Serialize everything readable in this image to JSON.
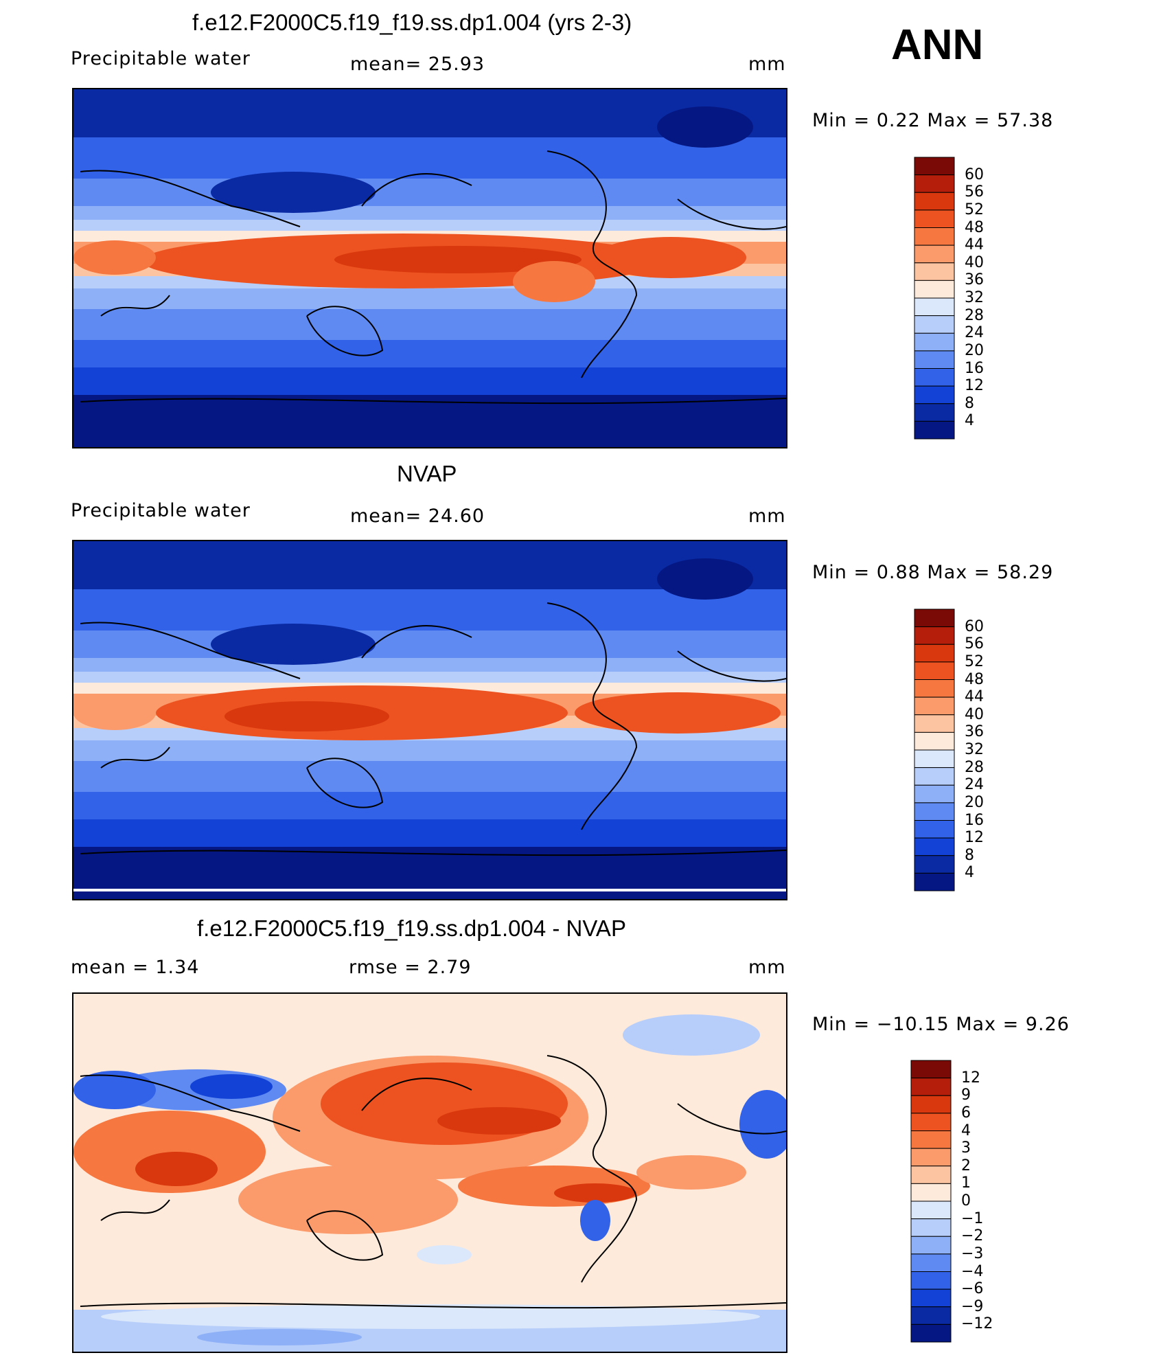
{
  "season": "ANN",
  "panels": [
    {
      "id": "model",
      "title": "f.e12.F2000C5.f19_f19.ss.dp1.004 (yrs 2-3)",
      "left_label": "Precipitable  water",
      "center_label": "mean=   25.93",
      "units": "mm",
      "range": "Min  =      0.22  Max  =     57.38",
      "legend": [
        "60",
        "56",
        "52",
        "48",
        "44",
        "40",
        "36",
        "32",
        "28",
        "24",
        "20",
        "16",
        "12",
        "8",
        "4"
      ],
      "colors": [
        "#7a0a05",
        "#b51e0a",
        "#d9370d",
        "#ec5320",
        "#f6773f",
        "#fb9a6a",
        "#fdc4a2",
        "#feeadb",
        "#dbe8fb",
        "#b7cefa",
        "#8eb0f7",
        "#5f8af1",
        "#3262e8",
        "#1243d6",
        "#0a2aa3",
        "#051783"
      ]
    },
    {
      "id": "obs",
      "title": "NVAP",
      "left_label": "Precipitable  water",
      "center_label": "mean=   24.60",
      "units": "mm",
      "range": "Min  =      0.88  Max  =     58.29",
      "legend": [
        "60",
        "56",
        "52",
        "48",
        "44",
        "40",
        "36",
        "32",
        "28",
        "24",
        "20",
        "16",
        "12",
        "8",
        "4"
      ],
      "colors": [
        "#7a0a05",
        "#b51e0a",
        "#d9370d",
        "#ec5320",
        "#f6773f",
        "#fb9a6a",
        "#fdc4a2",
        "#feeadb",
        "#dbe8fb",
        "#b7cefa",
        "#8eb0f7",
        "#5f8af1",
        "#3262e8",
        "#1243d6",
        "#0a2aa3",
        "#051783"
      ]
    },
    {
      "id": "diff",
      "title": "f.e12.F2000C5.f19_f19.ss.dp1.004 - NVAP",
      "left_label": "mean  =       1.34",
      "center_label": "rmse  =       2.79",
      "units": "mm",
      "range": "Min  =  −10.15  Max  =       9.26",
      "legend": [
        "12",
        "9",
        "6",
        "4",
        "3",
        "2",
        "1",
        "0",
        "−1",
        "−2",
        "−3",
        "−4",
        "−6",
        "−9",
        "−12"
      ],
      "colors": [
        "#7a0a05",
        "#b51e0a",
        "#d9370d",
        "#ec5320",
        "#f6773f",
        "#fb9a6a",
        "#fdc4a2",
        "#feeadb",
        "#dbe8fb",
        "#b7cefa",
        "#8eb0f7",
        "#5f8af1",
        "#3262e8",
        "#1243d6",
        "#0a2aa3",
        "#051783"
      ]
    }
  ]
}
